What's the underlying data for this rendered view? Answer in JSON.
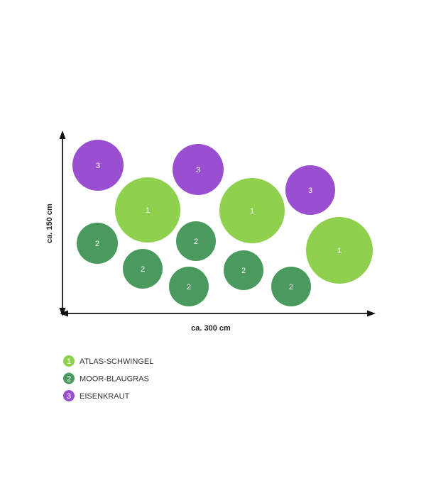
{
  "dimensions": {
    "height": "ca. 150 cm",
    "width": "ca. 300 cm"
  },
  "plants": [
    {
      "number": "1",
      "name": "ATLAS-SCHWINGEL",
      "color": "#8fd14f"
    },
    {
      "number": "2",
      "name": "MOOR-BLAUGRAS",
      "color": "#4a9a5f"
    },
    {
      "number": "3",
      "name": "EISENKRAUT",
      "color": "#9a4fd0"
    }
  ],
  "circles": [
    {
      "label": "3"
    },
    {
      "label": "3"
    },
    {
      "label": "3"
    },
    {
      "label": "1"
    },
    {
      "label": "1"
    },
    {
      "label": "1"
    },
    {
      "label": "2"
    },
    {
      "label": "2"
    },
    {
      "label": "2"
    },
    {
      "label": "2"
    },
    {
      "label": "2"
    },
    {
      "label": "2"
    }
  ]
}
